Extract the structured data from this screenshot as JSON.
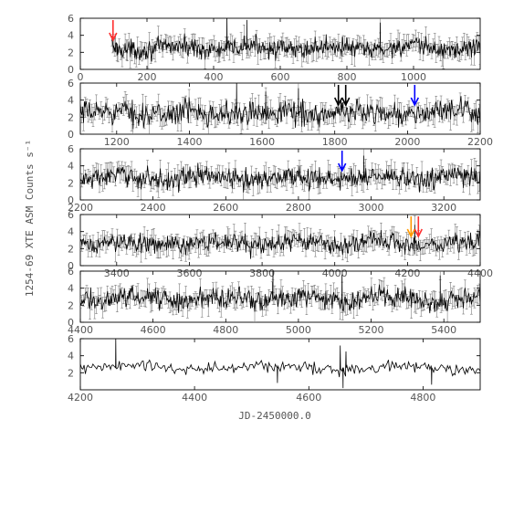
{
  "chart_data": {
    "type": "line",
    "xlabel": "JD-2450000.0",
    "ylabel": "1254-69 XTE ASM Counts s⁻¹",
    "grid": false,
    "series_color": "#000000",
    "panels": [
      {
        "xlim": [
          0,
          1200
        ],
        "ylim": [
          0,
          6
        ],
        "xticks": [
          0,
          200,
          400,
          600,
          800,
          1000
        ],
        "yticks": [
          0,
          2,
          4,
          6
        ],
        "data_start": 95,
        "mean_level": 2.5,
        "scatter": 0.55,
        "error_bars": true,
        "early_points": [
          [
            95,
            3.6
          ],
          [
            100,
            2.8
          ],
          [
            105,
            2.0
          ],
          [
            110,
            1.6
          ],
          [
            140,
            1.9
          ]
        ],
        "spikes": [
          [
            440,
            6.3
          ],
          [
            500,
            5.8
          ],
          [
            900,
            5.5
          ]
        ],
        "arrows": [
          {
            "x": 98,
            "color": "#ff3030"
          }
        ]
      },
      {
        "xlim": [
          1100,
          2200
        ],
        "ylim": [
          0,
          6
        ],
        "xticks": [
          1200,
          1400,
          1600,
          1800,
          2000,
          2200
        ],
        "yticks": [
          0,
          2,
          4,
          6
        ],
        "mean_level": 2.5,
        "scatter": 0.7,
        "error_bars": true,
        "spikes": [
          [
            1530,
            6.0
          ],
          [
            1610,
            5.0
          ],
          [
            1700,
            5.4
          ]
        ],
        "arrows": [
          {
            "x": 1810,
            "color": "#000000"
          },
          {
            "x": 1830,
            "color": "#000000"
          },
          {
            "x": 2020,
            "color": "#0000ff"
          }
        ]
      },
      {
        "xlim": [
          2200,
          3300
        ],
        "ylim": [
          0,
          6
        ],
        "xticks": [
          2200,
          2400,
          2600,
          2800,
          3000,
          3200
        ],
        "yticks": [
          0,
          2,
          4,
          6
        ],
        "mean_level": 2.6,
        "scatter": 0.6,
        "error_bars": true,
        "spikes": [
          [
            2980,
            5.2
          ]
        ],
        "arrows": [
          {
            "x": 2920,
            "color": "#0000ff"
          }
        ]
      },
      {
        "xlim": [
          3300,
          4400
        ],
        "ylim": [
          0,
          6
        ],
        "xticks": [
          3400,
          3600,
          3800,
          4000,
          4200,
          4400
        ],
        "yticks": [
          0,
          2,
          4,
          6
        ],
        "mean_level": 2.6,
        "scatter": 0.55,
        "error_bars": true,
        "spikes": [
          [
            4220,
            4.8
          ]
        ],
        "arrows": [
          {
            "x": 4210,
            "color": "#ff9900"
          },
          {
            "x": 4230,
            "color": "#ff3030"
          }
        ]
      },
      {
        "xlim": [
          4400,
          5500
        ],
        "ylim": [
          0,
          6
        ],
        "xticks": [
          4400,
          4600,
          4800,
          5000,
          5200,
          5400
        ],
        "yticks": [
          0,
          2,
          4,
          6
        ],
        "mean_level": 2.8,
        "scatter": 0.6,
        "error_bars": true,
        "spikes": [
          [
            4930,
            6.0
          ],
          [
            5120,
            5.6
          ],
          [
            5390,
            5.5
          ]
        ],
        "arrows": []
      },
      {
        "xlim": [
          4200,
          4900
        ],
        "ylim": [
          0,
          6
        ],
        "xticks": [
          4200,
          4400,
          4600,
          4800
        ],
        "yticks": [
          2,
          4,
          6
        ],
        "mean_level": 2.6,
        "scatter": 0.35,
        "error_bars": false,
        "spikes": [
          [
            4262,
            6.0
          ],
          [
            4655,
            5.2
          ],
          [
            4665,
            4.5
          ]
        ],
        "dips": [
          [
            4545,
            0.8
          ],
          [
            4660,
            0.2
          ],
          [
            4815,
            0.6
          ]
        ],
        "arrows": []
      }
    ]
  }
}
